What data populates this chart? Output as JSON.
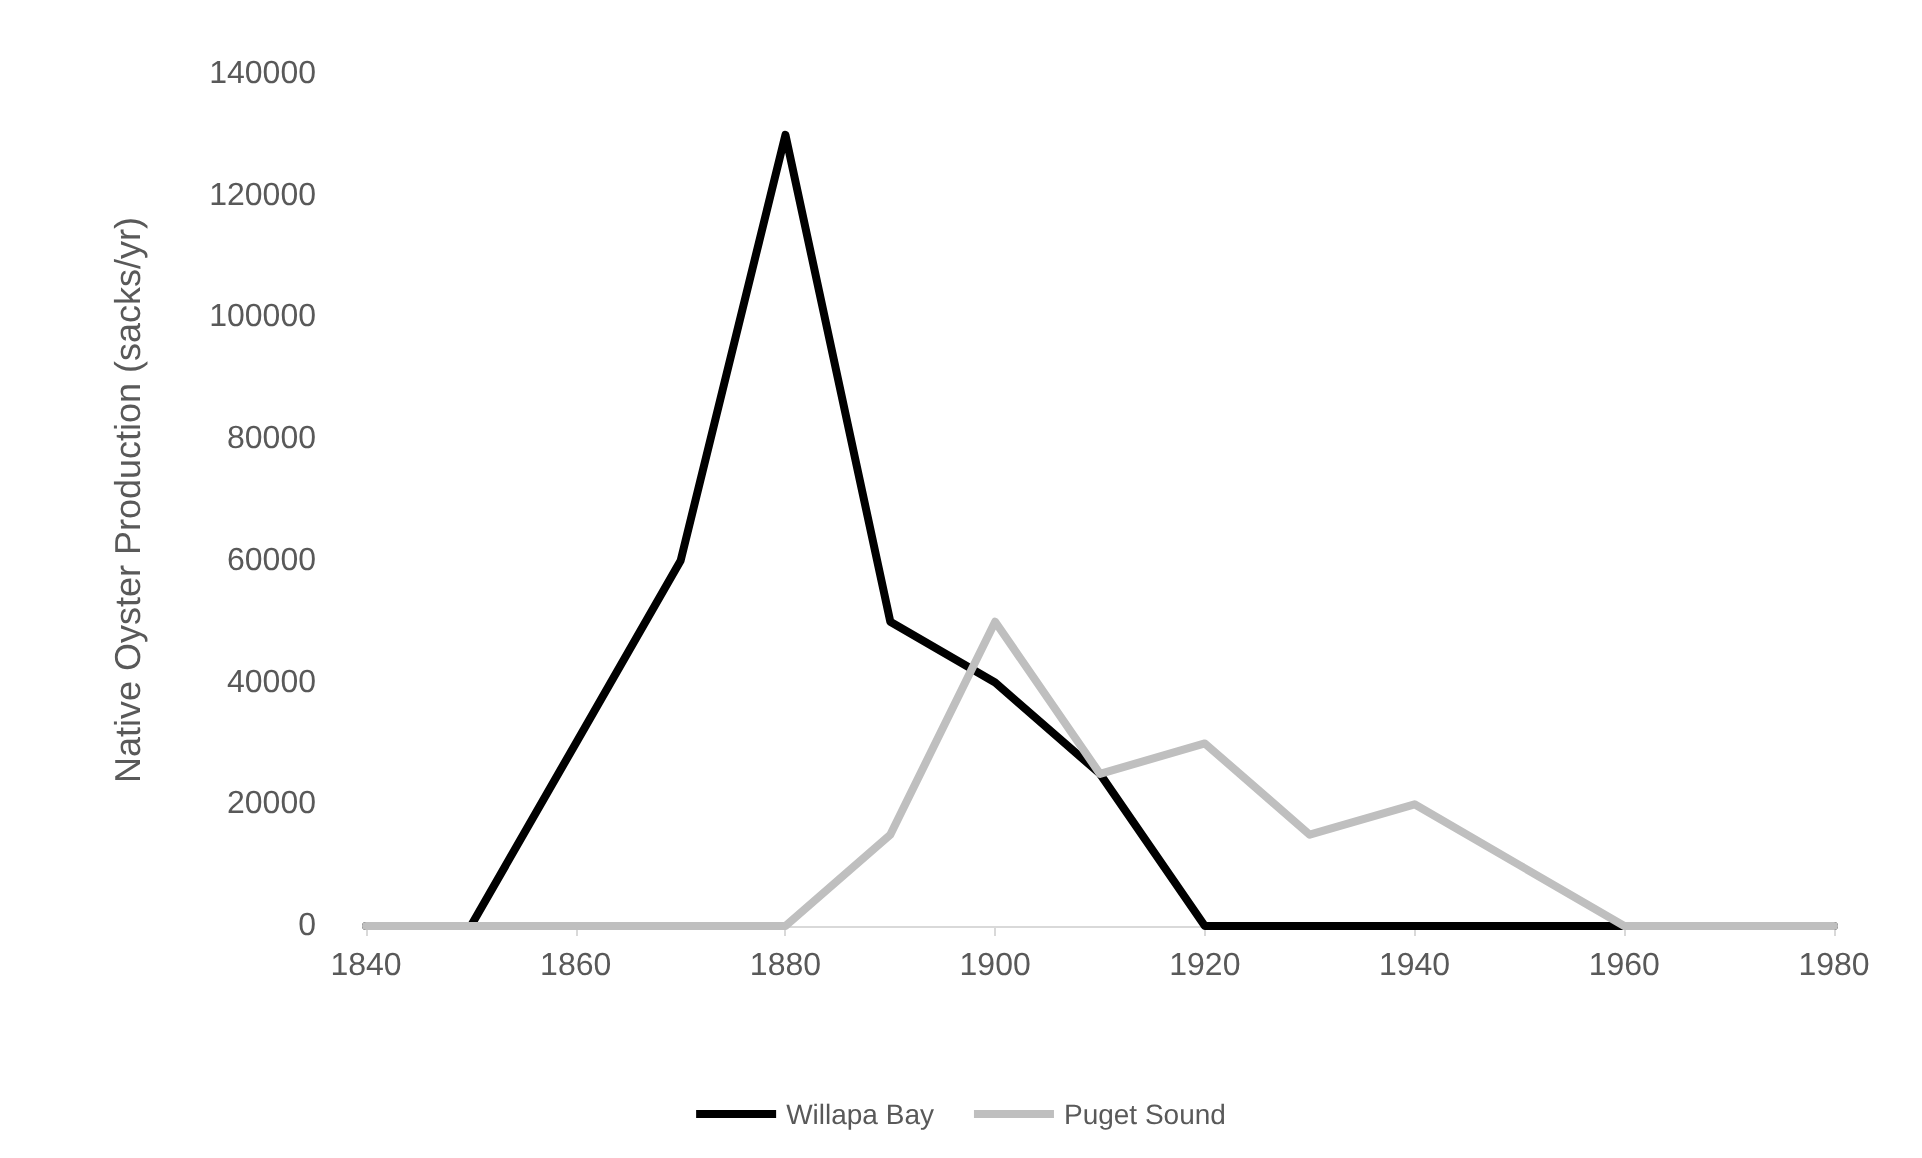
{
  "chart_data": {
    "type": "line",
    "ylabel": "Native Oyster Production (sacks/yr)",
    "x": [
      1840,
      1850,
      1860,
      1870,
      1880,
      1890,
      1900,
      1910,
      1920,
      1930,
      1940,
      1950,
      1960,
      1970,
      1980
    ],
    "series": [
      {
        "name": "Willapa Bay",
        "color": "#000000",
        "values": [
          0,
          0,
          30000,
          60000,
          130000,
          50000,
          40000,
          25000,
          0,
          0,
          0,
          0,
          0,
          0,
          0
        ]
      },
      {
        "name": "Puget Sound",
        "color": "#bfbfbf",
        "values": [
          0,
          0,
          0,
          0,
          0,
          15000,
          50000,
          25000,
          30000,
          15000,
          20000,
          10000,
          0,
          0,
          0
        ]
      }
    ],
    "xlim": [
      1840,
      1980
    ],
    "xticks": [
      1840,
      1860,
      1880,
      1900,
      1920,
      1940,
      1960,
      1980
    ],
    "ylim": [
      0,
      140000
    ],
    "yticks": [
      0,
      20000,
      40000,
      60000,
      80000,
      100000,
      120000,
      140000
    ],
    "grid": false,
    "legend": "bottom",
    "marker": "none",
    "line_style": "solid"
  }
}
